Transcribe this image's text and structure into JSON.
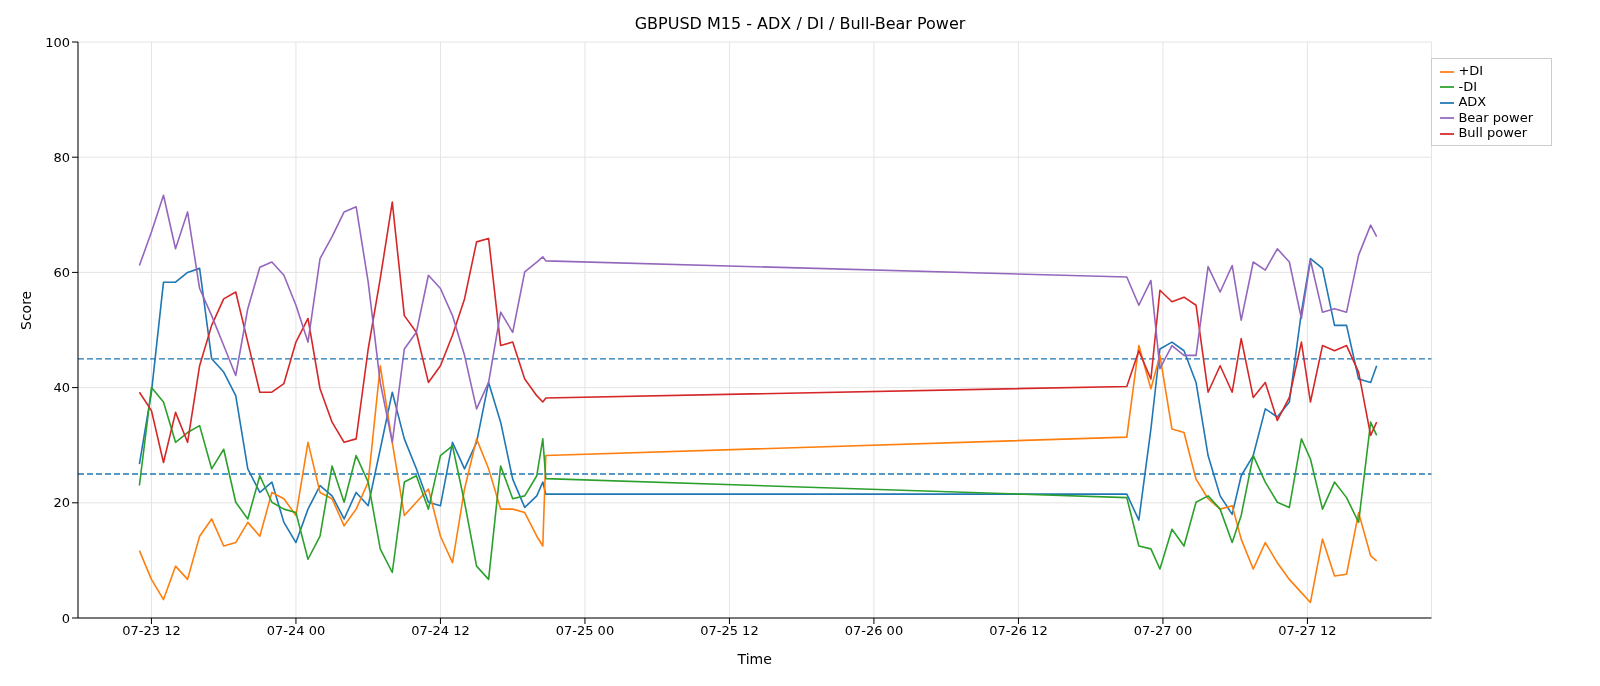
{
  "chart_data": {
    "type": "line",
    "title": "GBPUSD M15 - ADX / DI / Bull-Bear Power",
    "xlabel": "Time",
    "ylabel": "Score",
    "x": [
      "--07-23T11:00",
      "--07-23T12:00",
      "--07-23T13:00",
      "--07-23T14:00",
      "--07-23T15:00",
      "--07-23T16:00",
      "--07-23T17:00",
      "--07-23T18:00",
      "--07-23T19:00",
      "--07-23T20:00",
      "--07-23T21:00",
      "--07-23T22:00",
      "--07-23T23:00",
      "--07-24T00:00",
      "--07-24T01:00",
      "--07-24T02:00",
      "--07-24T03:00",
      "--07-24T04:00",
      "--07-24T05:00",
      "--07-24T06:00",
      "--07-24T07:00",
      "--07-24T08:00",
      "--07-24T09:00",
      "--07-24T10:00",
      "--07-24T11:00",
      "--07-24T12:00",
      "--07-24T13:00",
      "--07-24T14:00",
      "--07-24T15:00",
      "--07-24T16:00",
      "--07-24T17:00",
      "--07-24T18:00",
      "--07-24T19:00",
      "--07-24T20:00",
      "--07-24T20:30",
      "--07-24T20:45",
      "--07-26T21:00",
      "--07-26T22:00",
      "--07-26T23:00",
      "--07-26T23:45",
      "--07-27T00:45",
      "--07-27T01:45",
      "--07-27T02:45",
      "--07-27T03:45",
      "--07-27T04:45",
      "--07-27T05:45",
      "--07-27T06:30",
      "--07-27T07:30",
      "--07-27T08:30",
      "--07-27T09:30",
      "--07-27T10:30",
      "--07-27T11:30",
      "--07-27T12:15",
      "--07-27T13:15",
      "--07-27T14:15",
      "--07-27T15:15",
      "--07-27T16:15",
      "--07-27T17:15",
      "--07-27T17:45"
    ],
    "series": [
      {
        "name": "ADX",
        "color": "#1f77b4",
        "values": [
          26.7,
          39.2,
          58.3,
          58.3,
          60,
          60.7,
          45,
          42.7,
          38.6,
          25.9,
          21.8,
          23.6,
          16.6,
          13.1,
          18.9,
          23,
          21.2,
          17.2,
          21.8,
          19.5,
          29.3,
          39.2,
          31.1,
          25.9,
          20.1,
          19.5,
          30.5,
          25.9,
          30.5,
          40.9,
          34,
          24.1,
          19.2,
          21.2,
          23.6,
          21.5,
          21.5,
          17,
          32.8,
          46.7,
          47.9,
          46.4,
          40.9,
          28.2,
          21.2,
          18,
          24.7,
          28.2,
          36.3,
          34.9,
          37.5,
          53.1,
          62.4,
          60.7,
          50.8,
          50.8,
          41.5,
          40.9,
          43.8
        ]
      },
      {
        "name": "+DI",
        "color": "#ff7f0e",
        "values": [
          11.7,
          6.7,
          3.2,
          9,
          6.7,
          14.2,
          17.2,
          12.5,
          13.1,
          16.6,
          14.2,
          21.8,
          20.7,
          17.8,
          30.5,
          21.8,
          20.7,
          16,
          18.9,
          23.6,
          43.8,
          30.5,
          17.8,
          20.1,
          22.4,
          14.2,
          9.6,
          22.4,
          31.1,
          25.9,
          18.9,
          18.9,
          18.3,
          14.2,
          12.5,
          28.2,
          31.4,
          47.3,
          39.8,
          45.6,
          32.8,
          32.2,
          24.1,
          20.7,
          18.9,
          19.5,
          13.7,
          8.5,
          13.1,
          9.6,
          6.7,
          4.4,
          2.7,
          13.7,
          7.3,
          7.6,
          18.3,
          10.8,
          9.9
        ]
      },
      {
        "name": "-DI",
        "color": "#2ca02c",
        "values": [
          23,
          40,
          37.5,
          30.5,
          32.2,
          33.4,
          25.9,
          29.3,
          20.1,
          17.2,
          24.7,
          20.1,
          18.9,
          18.3,
          10.2,
          14.2,
          26.4,
          20.1,
          28.2,
          23.6,
          12,
          7.9,
          23.6,
          24.7,
          18.9,
          28.2,
          29.9,
          20.1,
          9,
          6.7,
          26.4,
          20.7,
          21.2,
          24.7,
          31.1,
          24.2,
          20.9,
          12.5,
          12,
          8.5,
          15.4,
          12.5,
          20.1,
          21.2,
          18.9,
          13.1,
          17.8,
          28.2,
          23.6,
          20.1,
          19.2,
          31.1,
          27.6,
          18.9,
          23.6,
          20.9,
          16.6,
          34,
          31.7
        ]
      },
      {
        "name": "Bull power",
        "color": "#d62728",
        "values": [
          39.2,
          36,
          27,
          35.7,
          30.5,
          43.8,
          50.8,
          55.4,
          56.6,
          47.9,
          39.2,
          39.2,
          40.7,
          47.9,
          52,
          39.8,
          34,
          30.5,
          31.1,
          46.7,
          58.9,
          72.2,
          52.5,
          49.6,
          40.9,
          43.8,
          49.1,
          55.4,
          65.3,
          65.9,
          47.3,
          47.9,
          41.5,
          38.6,
          37.5,
          38.2,
          40.2,
          46.4,
          41.5,
          56.9,
          54.9,
          55.7,
          54.3,
          39.2,
          43.8,
          39.2,
          48.5,
          38.3,
          40.9,
          34.3,
          38.3,
          47.9,
          37.5,
          47.3,
          46.4,
          47.3,
          42.7,
          31.7,
          34
        ]
      },
      {
        "name": "Bear power",
        "color": "#9467bd",
        "values": [
          61.2,
          67,
          73.4,
          64.1,
          70.5,
          57.2,
          52.5,
          47.3,
          42.1,
          53.7,
          60.9,
          61.8,
          59.5,
          54.3,
          47.9,
          62.4,
          66.2,
          70.5,
          71.4,
          58.3,
          40.9,
          30.5,
          46.7,
          49.6,
          59.5,
          57.2,
          52.5,
          45.6,
          36.3,
          40.9,
          53.1,
          49.6,
          60.1,
          61.8,
          62.7,
          62,
          59.2,
          54.3,
          58.6,
          43.3,
          47.3,
          45.6,
          45.6,
          61,
          56.6,
          61.2,
          51.7,
          61.8,
          60.4,
          64.1,
          61.8,
          52,
          62.1,
          53.1,
          53.7,
          53.1,
          63,
          68.2,
          66.2
        ]
      }
    ],
    "xlim": [
      "--07-23T05:54",
      "--07-27T22:18"
    ],
    "xticks": [
      {
        "value": "--07-23T12:00",
        "label": "07-23 12"
      },
      {
        "value": "--07-24T00:00",
        "label": "07-24 00"
      },
      {
        "value": "--07-24T12:00",
        "label": "07-24 12"
      },
      {
        "value": "--07-25T00:00",
        "label": "07-25 00"
      },
      {
        "value": "--07-25T12:00",
        "label": "07-25 12"
      },
      {
        "value": "--07-26T00:00",
        "label": "07-26 00"
      },
      {
        "value": "--07-26T12:00",
        "label": "07-26 12"
      },
      {
        "value": "--07-27T00:00",
        "label": "07-27 00"
      },
      {
        "value": "--07-27T12:00",
        "label": "07-27 12"
      }
    ],
    "ylim": [
      0,
      100
    ],
    "yticks": [
      0,
      20,
      40,
      60,
      80,
      100
    ],
    "ref_lines": [
      {
        "axis": "y",
        "value": 45,
        "color": "#1f77b4",
        "line_style": "dashed"
      },
      {
        "axis": "y",
        "value": 25,
        "color": "#1f77b4",
        "line_style": "dashed"
      }
    ],
    "grid": true,
    "legend": "top right"
  }
}
